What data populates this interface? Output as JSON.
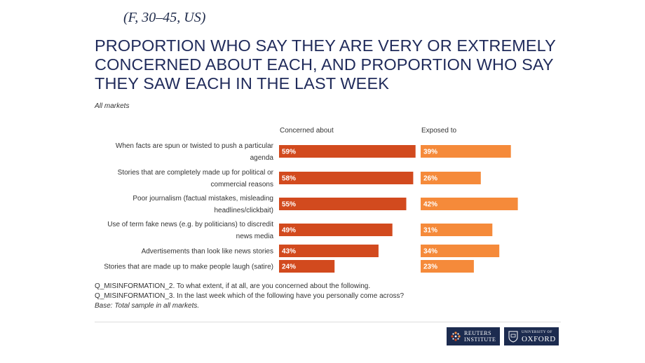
{
  "persona": "(F, 30–45, US)",
  "title": "PROPORTION WHO SAY THEY ARE VERY OR EXTREMELY CONCERNED ABOUT EACH, AND PROPORTION WHO SAY THEY SAW EACH IN THE LAST WEEK",
  "subtitle": "All markets",
  "chart_data": {
    "type": "bar",
    "orientation": "horizontal",
    "title": "PROPORTION WHO SAY THEY ARE VERY OR EXTREMELY CONCERNED ABOUT EACH, AND PROPORTION WHO SAY THEY SAW EACH IN THE LAST WEEK",
    "categories": [
      [
        "When facts are spun or twisted to push a particular",
        "agenda"
      ],
      [
        "Stories that are completely made up for political or",
        "commercial reasons"
      ],
      [
        "Poor journalism (factual mistakes, misleading",
        "headlines/clickbait)"
      ],
      [
        "Use of term fake news (e.g. by politicians) to discredit",
        "news media"
      ],
      [
        "Advertisements than look like news stories"
      ],
      [
        "Stories that are made up to make people laugh (satire)"
      ]
    ],
    "series": [
      {
        "name": "Concerned about",
        "values": [
          59,
          58,
          55,
          49,
          43,
          24
        ],
        "labels": [
          "59%",
          "58%",
          "55%",
          "49%",
          "43%",
          "24%"
        ],
        "color": "#d24a1e"
      },
      {
        "name": "Exposed to",
        "values": [
          39,
          26,
          42,
          31,
          34,
          23
        ],
        "labels": [
          "39%",
          "26%",
          "42%",
          "31%",
          "34%",
          "23%"
        ],
        "color": "#f58a3a"
      }
    ],
    "xlim": [
      0,
      100
    ],
    "unit": "%"
  },
  "notes": {
    "q1": "Q_MISINFORMATION_2. To what extent, if at all, are you concerned about the following.",
    "q2": "Q_MISINFORMATION_3. In the last week which of the following have you personally come across?",
    "base": "Base: Total sample in all markets."
  },
  "logos": {
    "reuters_line1": "REUTERS",
    "reuters_line2": "INSTITUTE",
    "oxford_small": "UNIVERSITY OF",
    "oxford_big": "OXFORD",
    "brand_color": "#1c2b4f"
  }
}
